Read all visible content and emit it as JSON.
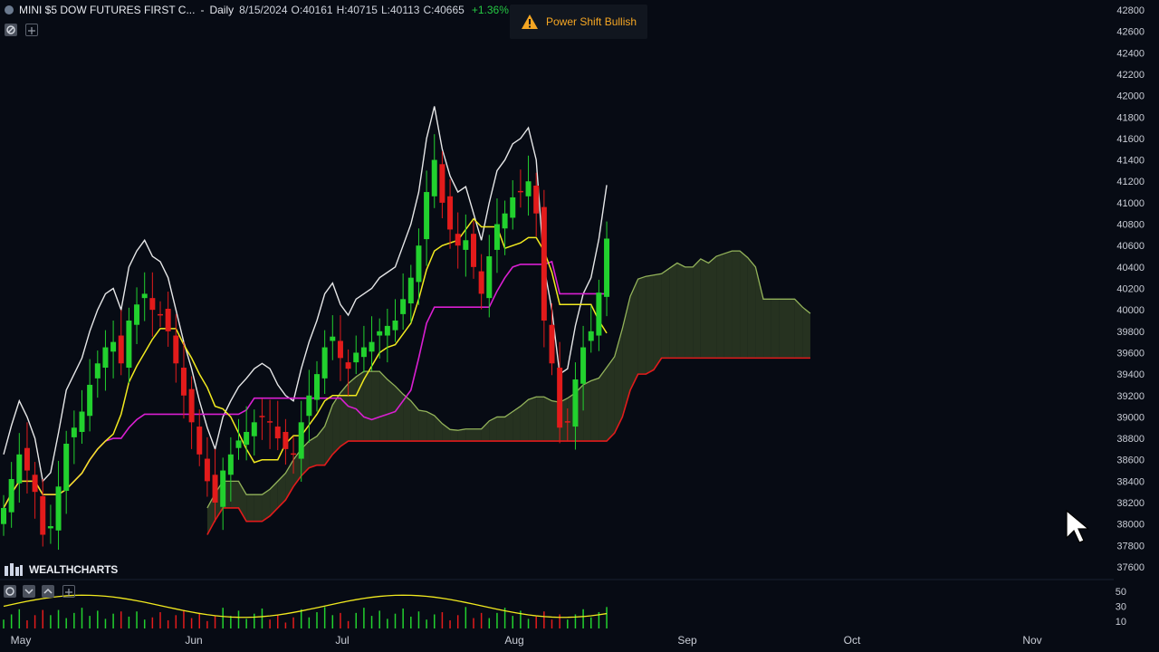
{
  "header": {
    "symbol": "MINI $5 DOW FUTURES FIRST C...",
    "separator": "-",
    "timeframe": "Daily",
    "date": "8/15/2024",
    "open_label": "O:",
    "open": "40161",
    "high_label": "H:",
    "high": "40715",
    "low_label": "L:",
    "low": "40113",
    "close_label": "C:",
    "close": "40665",
    "change": "+1.36%"
  },
  "alert": {
    "text": "Power Shift Bullish",
    "icon": "warning-icon"
  },
  "brand": {
    "text": "WEALTHCHARTS"
  },
  "colors": {
    "background": "#070b14",
    "up": "#22d12e",
    "down": "#e21b1b",
    "tenkan": "#f2ea1f",
    "kijun": "#d91fd1",
    "lagging": "#ffffff",
    "span_a": "#93b35a",
    "span_b": "#e21b1b",
    "cloud_bull": "#2b3a22",
    "cloud_bear": "#3e1616",
    "alert_text": "#f5a623"
  },
  "chart_data": {
    "type": "line",
    "title": "MINI $5 DOW FUTURES FIRST C... - Daily",
    "x_months": [
      "May",
      "Jun",
      "Jul",
      "Aug",
      "Sep",
      "Oct",
      "Nov"
    ],
    "ylim": [
      37500,
      42850
    ],
    "y_ticks": [
      37600,
      37800,
      38000,
      38200,
      38400,
      38600,
      38800,
      39000,
      39200,
      39400,
      39600,
      39800,
      40000,
      40200,
      40400,
      40600,
      40800,
      41000,
      41200,
      41400,
      41600,
      41800,
      42000,
      42200,
      42400,
      42600,
      42800
    ],
    "grid": false,
    "candles_close": [
      38150,
      38420,
      38650,
      38500,
      38300,
      37900,
      37980,
      38350,
      38750,
      38900,
      39050,
      39300,
      39500,
      39650,
      39700,
      39500,
      39900,
      40050,
      40150,
      40000,
      39950,
      39800,
      39500,
      39200,
      38950,
      38650,
      38400,
      38200,
      38500,
      38650,
      38780,
      38860,
      38950,
      39000,
      38950,
      38800,
      38700,
      38650,
      38950,
      39200,
      39400,
      39650,
      39750,
      39550,
      39450,
      39600,
      39650,
      39700,
      39800,
      39850,
      39900,
      40100,
      40300,
      40600,
      41100,
      41400,
      41000,
      40750,
      40600,
      40650,
      40400,
      40150,
      40500,
      40800,
      40900,
      41050,
      41100,
      41200,
      40900,
      39900,
      39500,
      38900,
      38950,
      39350,
      39650,
      39800,
      40161,
      40665
    ],
    "indicators": [
      {
        "name": "Tenkan",
        "color": "#f2ea1f"
      },
      {
        "name": "Kijun",
        "color": "#d91fd1"
      },
      {
        "name": "Chikou",
        "color": "#ffffff"
      },
      {
        "name": "Span A",
        "color": "#93b35a"
      },
      {
        "name": "Span B",
        "color": "#e21b1b"
      }
    ],
    "sub_panel": {
      "y_ticks": [
        50,
        30,
        10
      ],
      "ylim": [
        0,
        60
      ]
    }
  }
}
